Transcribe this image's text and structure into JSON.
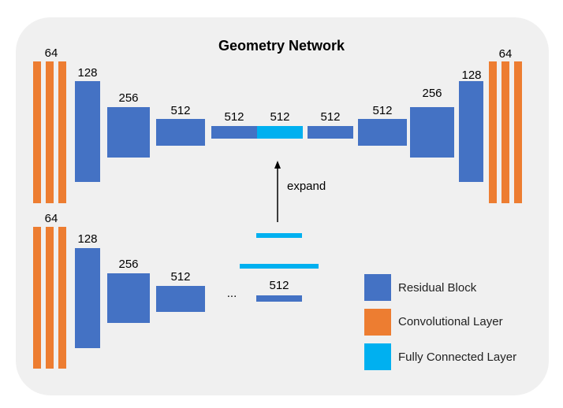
{
  "title": "Geometry Network",
  "colors": {
    "residual": "#4472c4",
    "conv": "#ed7d31",
    "fc": "#00b0f0",
    "panel": "#f0f0f0"
  },
  "top_net": {
    "encoder_labels": [
      "64",
      "128",
      "256",
      "512"
    ],
    "bottleneck_labels": [
      "512",
      "512",
      "512"
    ],
    "decoder_labels": [
      "512",
      "256",
      "128",
      "64"
    ]
  },
  "bottom_net": {
    "labels": [
      "64",
      "128",
      "256",
      "512",
      "512"
    ],
    "ellipsis": "..."
  },
  "expand_label": "expand",
  "legend": {
    "residual": "Residual Block",
    "conv": "Convolutional Layer",
    "fc": "Fully Connected Layer"
  }
}
